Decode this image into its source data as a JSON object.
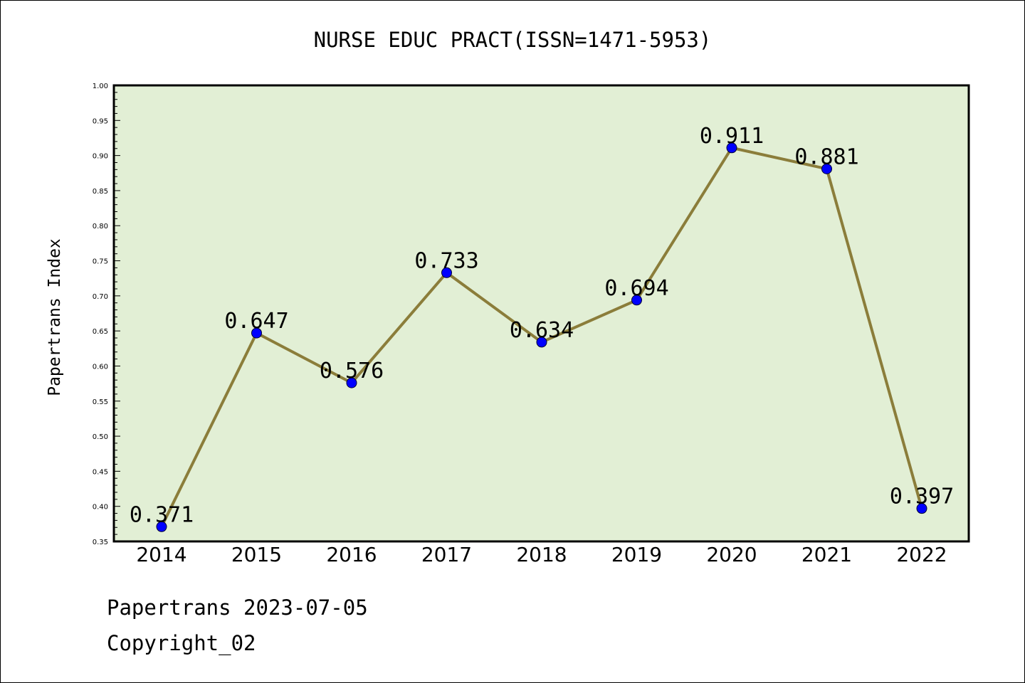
{
  "footer": {
    "line1": "Papertrans 2023-07-05",
    "line2": "Copyright_02"
  },
  "colors": {
    "plot_background": "#e2efd5",
    "line": "#8b7d3a",
    "marker": "#0000ff"
  },
  "chart_data": {
    "type": "line",
    "title": "NURSE EDUC PRACT(ISSN=1471-5953)",
    "xlabel": "",
    "ylabel": "Papertrans Index",
    "categories": [
      "2014",
      "2015",
      "2016",
      "2017",
      "2018",
      "2019",
      "2020",
      "2021",
      "2022"
    ],
    "values": [
      0.371,
      0.647,
      0.576,
      0.733,
      0.634,
      0.694,
      0.911,
      0.881,
      0.397
    ],
    "data_labels": [
      "0.371",
      "0.647",
      "0.576",
      "0.733",
      "0.634",
      "0.694",
      "0.911",
      "0.881",
      "0.397"
    ],
    "ylim": [
      0.35,
      1.0
    ],
    "yticks": [
      "0.35",
      "0.40",
      "0.45",
      "0.50",
      "0.55",
      "0.60",
      "0.65",
      "0.70",
      "0.75",
      "0.80",
      "0.85",
      "0.90",
      "0.95",
      "1.00"
    ],
    "grid": false,
    "legend": "none"
  }
}
